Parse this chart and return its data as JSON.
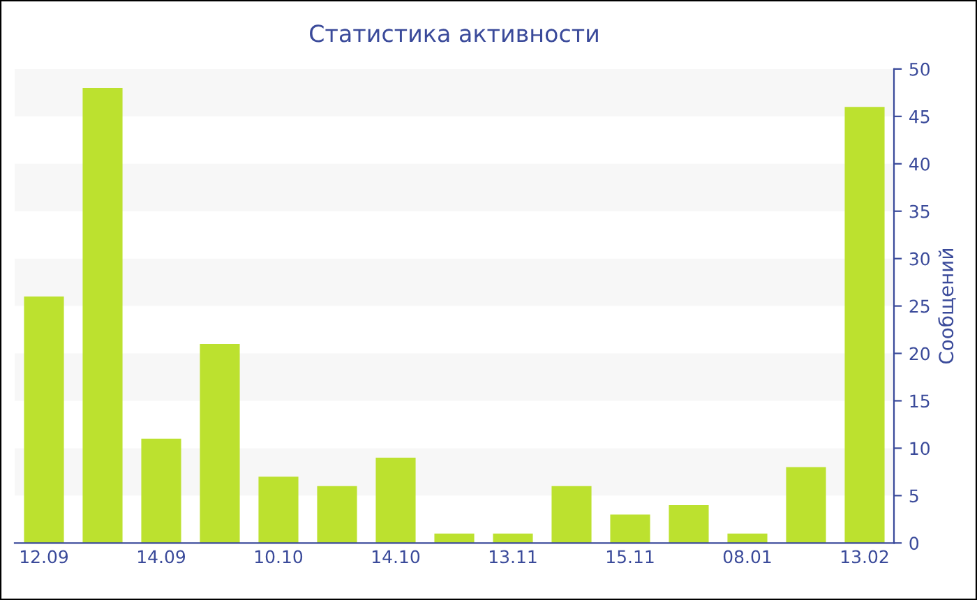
{
  "chart_data": {
    "type": "bar",
    "title": "Статистика активности",
    "ylabel": "Сообщений",
    "categories": [
      "12.09",
      null,
      "14.09",
      null,
      "10.10",
      null,
      "14.10",
      null,
      "13.11",
      null,
      "15.11",
      null,
      "08.01",
      null,
      "13.02"
    ],
    "values": [
      26,
      48,
      11,
      21,
      7,
      6,
      9,
      1,
      1,
      6,
      3,
      4,
      1,
      8,
      46
    ],
    "color": "#bce12f",
    "ylim": [
      0,
      50
    ],
    "yticks": [
      0,
      5,
      10,
      15,
      20,
      25,
      30,
      35,
      40,
      45,
      50
    ],
    "bands": [
      {
        "axis": "y",
        "from": 5,
        "to": 10,
        "color": "#f7f7f7"
      },
      {
        "axis": "y",
        "from": 15,
        "to": 20,
        "color": "#f7f7f7"
      },
      {
        "axis": "y",
        "from": 25,
        "to": 30,
        "color": "#f7f7f7"
      },
      {
        "axis": "y",
        "from": 35,
        "to": 40,
        "color": "#f7f7f7"
      },
      {
        "axis": "y",
        "from": 45,
        "to": 50,
        "color": "#f7f7f7"
      }
    ]
  }
}
